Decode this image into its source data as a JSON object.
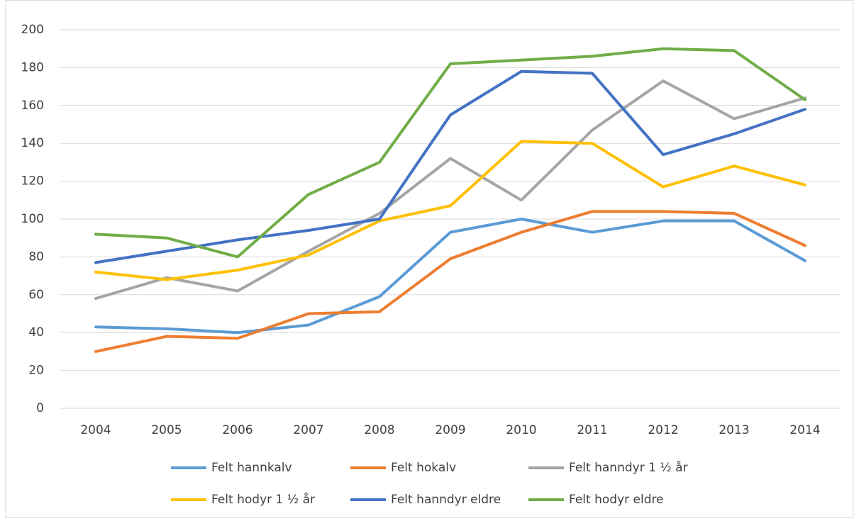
{
  "chart_data": {
    "type": "line",
    "categories": [
      "2004",
      "2005",
      "2006",
      "2007",
      "2008",
      "2009",
      "2010",
      "2011",
      "2012",
      "2013",
      "2014"
    ],
    "series": [
      {
        "name": "Felt hannkalv",
        "color": "#5b9bd5",
        "values": [
          43,
          42,
          40,
          44,
          59,
          93,
          100,
          93,
          99,
          99,
          78
        ]
      },
      {
        "name": "Felt hokalv",
        "color": "#ed7d31",
        "values": [
          30,
          38,
          37,
          50,
          51,
          79,
          93,
          104,
          104,
          103,
          86
        ]
      },
      {
        "name": "Felt hanndyr 1 ½ år",
        "color": "#a5a5a5",
        "values": [
          58,
          69,
          62,
          83,
          103,
          132,
          110,
          147,
          173,
          153,
          164
        ]
      },
      {
        "name": "Felt hodyr 1 ½ år",
        "color": "#ffc000",
        "values": [
          72,
          68,
          73,
          81,
          99,
          107,
          141,
          140,
          117,
          128,
          118
        ]
      },
      {
        "name": "Felt hanndyr eldre",
        "color": "#4472c4",
        "values": [
          77,
          83,
          89,
          94,
          100,
          155,
          178,
          177,
          134,
          145,
          158
        ]
      },
      {
        "name": "Felt hodyr eldre",
        "color": "#70ad47",
        "values": [
          92,
          90,
          80,
          113,
          130,
          182,
          184,
          186,
          190,
          189,
          163
        ]
      }
    ],
    "ylim": [
      0,
      200
    ],
    "yticks": [
      0,
      20,
      40,
      60,
      80,
      100,
      120,
      140,
      160,
      180,
      200
    ],
    "grid": true
  }
}
